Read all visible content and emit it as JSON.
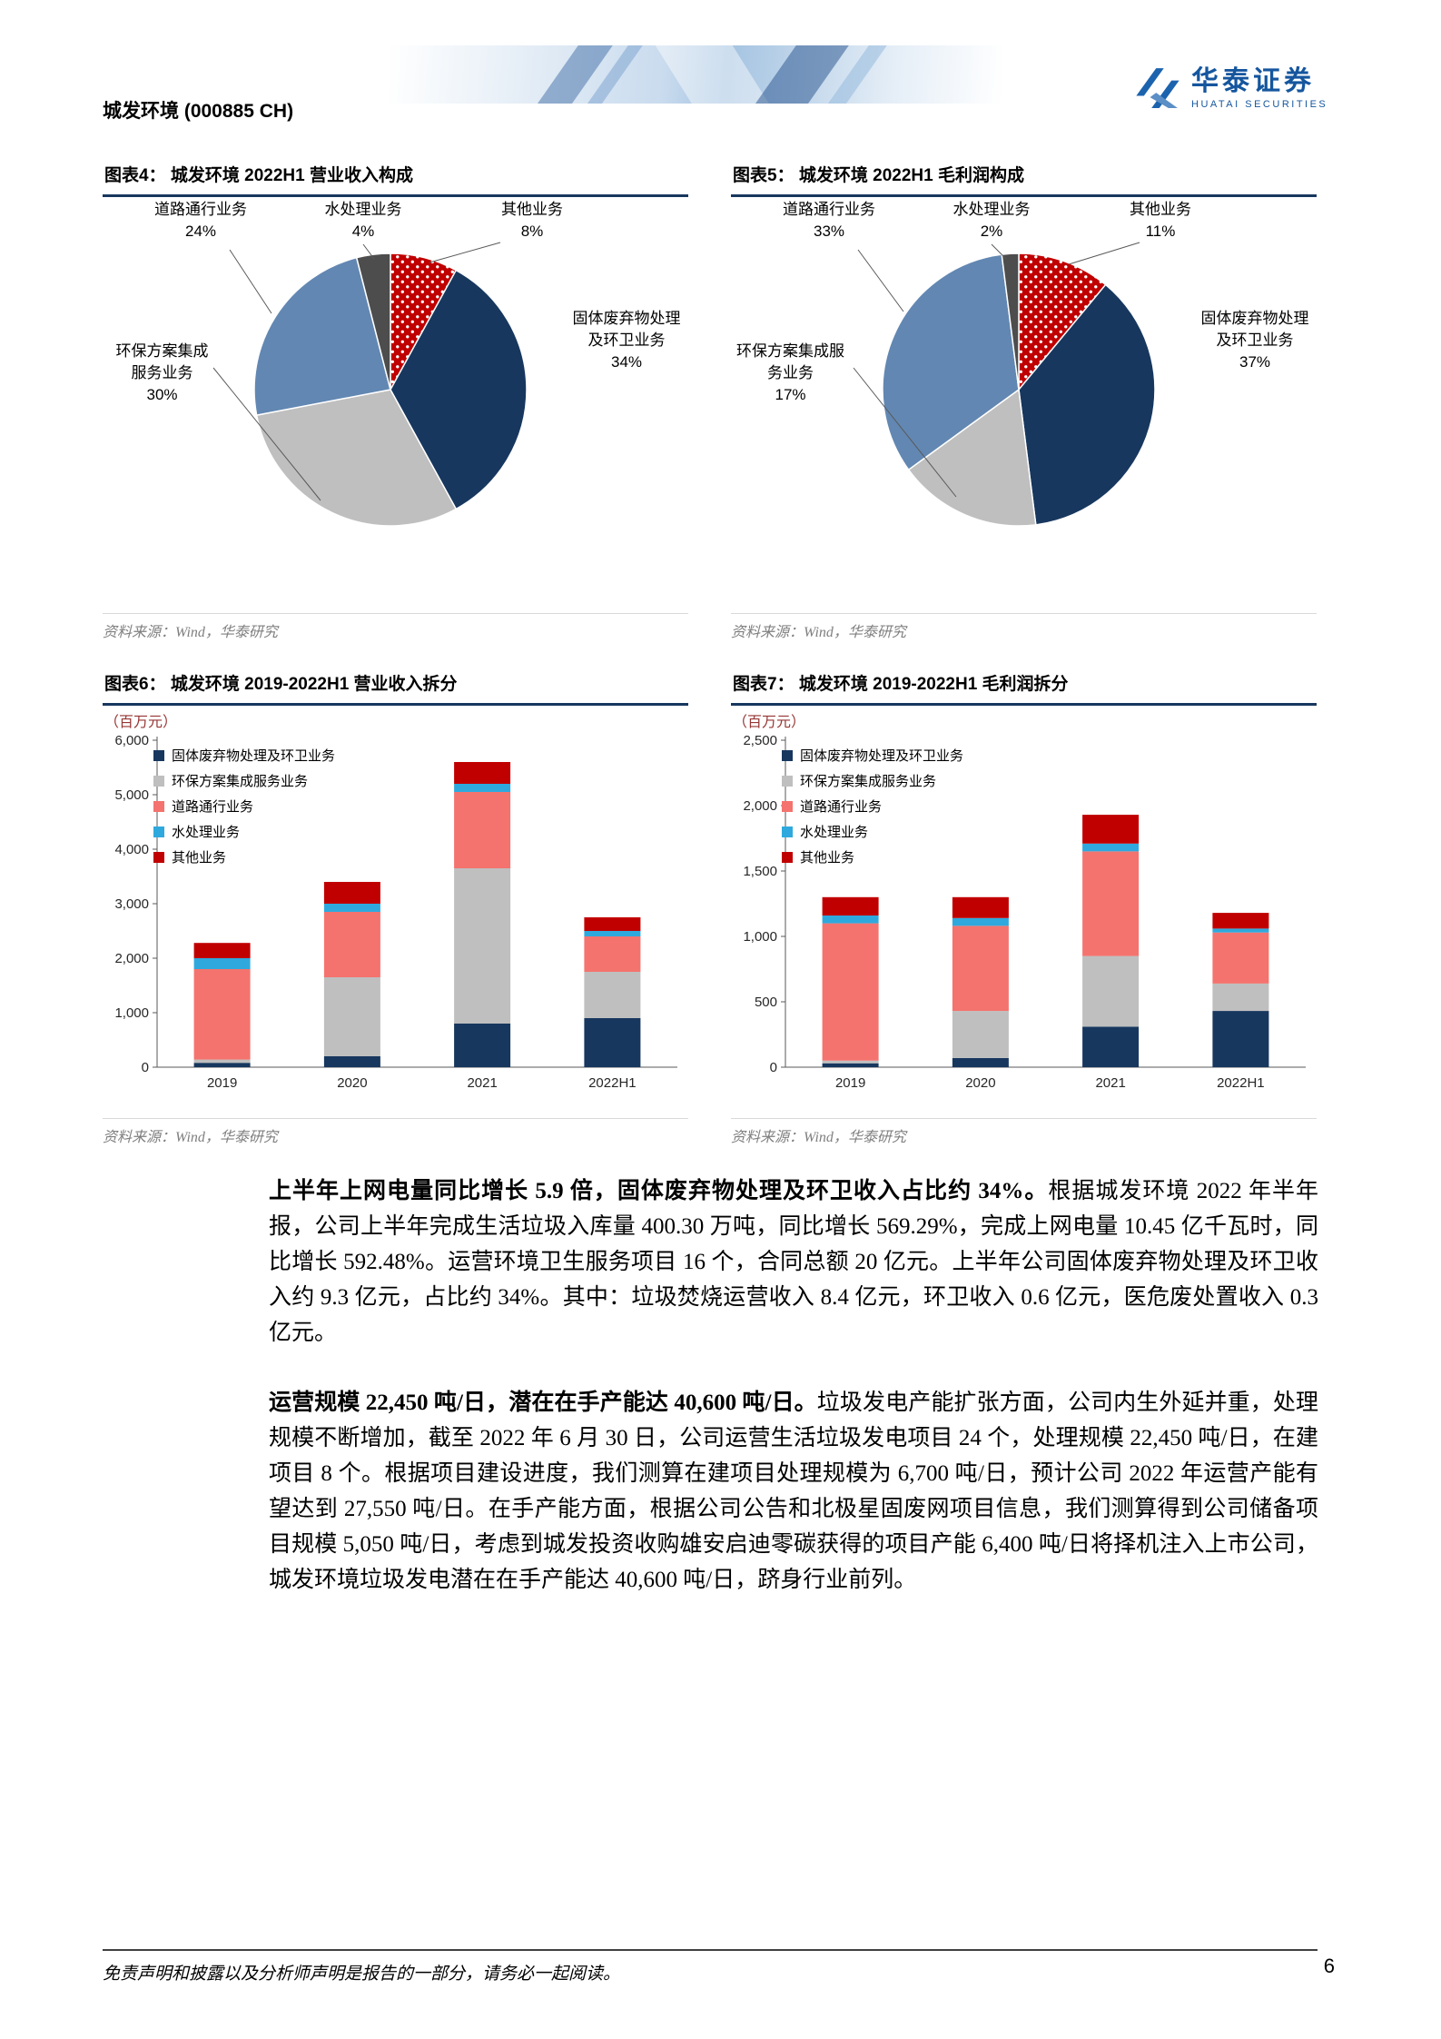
{
  "header": {
    "stock_title": "城发环境 (000885 CH)",
    "brand_name": "华泰证券",
    "brand_sub": "HUATAI SECURITIES"
  },
  "source_note": "资料来源：Wind，华泰研究",
  "figures": {
    "fig4": {
      "title": "图表4： 城发环境 2022H1 营业收入构成",
      "labels": {
        "road": "道路通行业务\n24%",
        "water": "水处理业务\n4%",
        "other": "其他业务\n8%",
        "solid": "固体废弃物处理\n及环卫业务\n34%",
        "env": "环保方案集成\n服务业务\n30%"
      }
    },
    "fig5": {
      "title": "图表5： 城发环境 2022H1 毛利润构成",
      "labels": {
        "road": "道路通行业务\n33%",
        "water": "水处理业务\n2%",
        "other": "其他业务\n11%",
        "solid": "固体废弃物处理\n及环卫业务\n37%",
        "env": "环保方案集成服\n务业务\n17%"
      }
    },
    "fig6": {
      "title": "图表6： 城发环境 2019-2022H1 营业收入拆分",
      "unit": "（百万元）"
    },
    "fig7": {
      "title": "图表7： 城发环境 2019-2022H1 毛利润拆分",
      "unit": "（百万元）"
    }
  },
  "chart_data": [
    {
      "id": "fig4",
      "type": "pie",
      "title": "城发环境 2022H1 营业收入构成",
      "unit": "%",
      "start": "top",
      "direction": "clockwise",
      "slices": [
        {
          "label": "其他业务",
          "value": 8,
          "color": "#C00000",
          "pattern": "dots"
        },
        {
          "label": "固体废弃物处理及环卫业务",
          "value": 34,
          "color": "#17375E"
        },
        {
          "label": "环保方案集成服务业务",
          "value": 30,
          "color": "#BFBFBF"
        },
        {
          "label": "道路通行业务",
          "value": 24,
          "color": "#6287B2"
        },
        {
          "label": "水处理业务",
          "value": 4,
          "color": "#4D4D4D"
        }
      ]
    },
    {
      "id": "fig5",
      "type": "pie",
      "title": "城发环境 2022H1 毛利润构成",
      "unit": "%",
      "start": "top",
      "direction": "clockwise",
      "slices": [
        {
          "label": "其他业务",
          "value": 11,
          "color": "#C00000",
          "pattern": "dots"
        },
        {
          "label": "固体废弃物处理及环卫业务",
          "value": 37,
          "color": "#17375E"
        },
        {
          "label": "环保方案集成服务业务",
          "value": 17,
          "color": "#BFBFBF"
        },
        {
          "label": "道路通行业务",
          "value": 33,
          "color": "#6287B2"
        },
        {
          "label": "水处理业务",
          "value": 2,
          "color": "#4D4D4D"
        }
      ]
    },
    {
      "id": "fig6",
      "type": "bar",
      "stacked": true,
      "title": "城发环境 2019-2022H1 营业收入拆分",
      "unit": "百万元",
      "categories": [
        "2019",
        "2020",
        "2021",
        "2022H1"
      ],
      "series": [
        {
          "name": "固体废弃物处理及环卫业务",
          "color": "#17375E",
          "values": [
            80,
            200,
            800,
            900
          ]
        },
        {
          "name": "环保方案集成服务业务",
          "color": "#BFBFBF",
          "values": [
            60,
            1450,
            2850,
            850
          ]
        },
        {
          "name": "道路通行业务",
          "color": "#F4736E",
          "values": [
            1660,
            1200,
            1400,
            650
          ]
        },
        {
          "name": "水处理业务",
          "color": "#2FA9DD",
          "values": [
            200,
            150,
            150,
            100
          ]
        },
        {
          "name": "其他业务",
          "color": "#C00000",
          "values": [
            280,
            400,
            400,
            250
          ]
        }
      ],
      "ylim": [
        0,
        6000
      ],
      "yticks": [
        "0",
        "1,000",
        "2,000",
        "3,000",
        "4,000",
        "5,000",
        "6,000"
      ],
      "grid": false,
      "legend_position": "upper-left-inside"
    },
    {
      "id": "fig7",
      "type": "bar",
      "stacked": true,
      "title": "城发环境 2019-2022H1 毛利润拆分",
      "unit": "百万元",
      "categories": [
        "2019",
        "2020",
        "2021",
        "2022H1"
      ],
      "series": [
        {
          "name": "固体废弃物处理及环卫业务",
          "color": "#17375E",
          "values": [
            30,
            70,
            310,
            430
          ]
        },
        {
          "name": "环保方案集成服务业务",
          "color": "#BFBFBF",
          "values": [
            20,
            360,
            540,
            210
          ]
        },
        {
          "name": "道路通行业务",
          "color": "#F4736E",
          "values": [
            1050,
            650,
            800,
            390
          ]
        },
        {
          "name": "水处理业务",
          "color": "#2FA9DD",
          "values": [
            60,
            60,
            60,
            30
          ]
        },
        {
          "name": "其他业务",
          "color": "#C00000",
          "values": [
            140,
            160,
            220,
            120
          ]
        }
      ],
      "ylim": [
        0,
        2500
      ],
      "yticks": [
        "0",
        "500",
        "1,000",
        "1,500",
        "2,000",
        "2,500"
      ],
      "grid": false,
      "legend_position": "upper-left-inside"
    }
  ],
  "body": {
    "p1_bold": "上半年上网电量同比增长 5.9 倍，固体废弃物处理及环卫收入占比约 34%。",
    "p1_text": "根据城发环境 2022 年半年报，公司上半年完成生活垃圾入库量 400.30 万吨，同比增长 569.29%，完成上网电量 10.45 亿千瓦时，同比增长 592.48%。运营环境卫生服务项目 16 个，合同总额 20 亿元。上半年公司固体废弃物处理及环卫收入约 9.3 亿元，占比约 34%。其中：垃圾焚烧运营收入 8.4 亿元，环卫收入 0.6 亿元，医危废处置收入 0.3 亿元。",
    "p2_bold": "运营规模 22,450 吨/日，潜在在手产能达 40,600 吨/日。",
    "p2_text": "垃圾发电产能扩张方面，公司内生外延并重，处理规模不断增加，截至 2022 年 6 月 30 日，公司运营生活垃圾发电项目 24 个，处理规模 22,450 吨/日，在建项目 8 个。根据项目建设进度，我们测算在建项目处理规模为 6,700 吨/日，预计公司 2022 年运营产能有望达到 27,550 吨/日。在手产能方面，根据公司公告和北极星固废网项目信息，我们测算得到公司储备项目规模 5,050 吨/日，考虑到城发投资收购雄安启迪零碳获得的项目产能 6,400 吨/日将择机注入上市公司，城发环境垃圾发电潜在在手产能达 40,600 吨/日，跻身行业前列。"
  },
  "footer": {
    "disclaimer": "免责声明和披露以及分析师声明是报告的一部分，请务必一起阅读。",
    "page_number": "6"
  }
}
